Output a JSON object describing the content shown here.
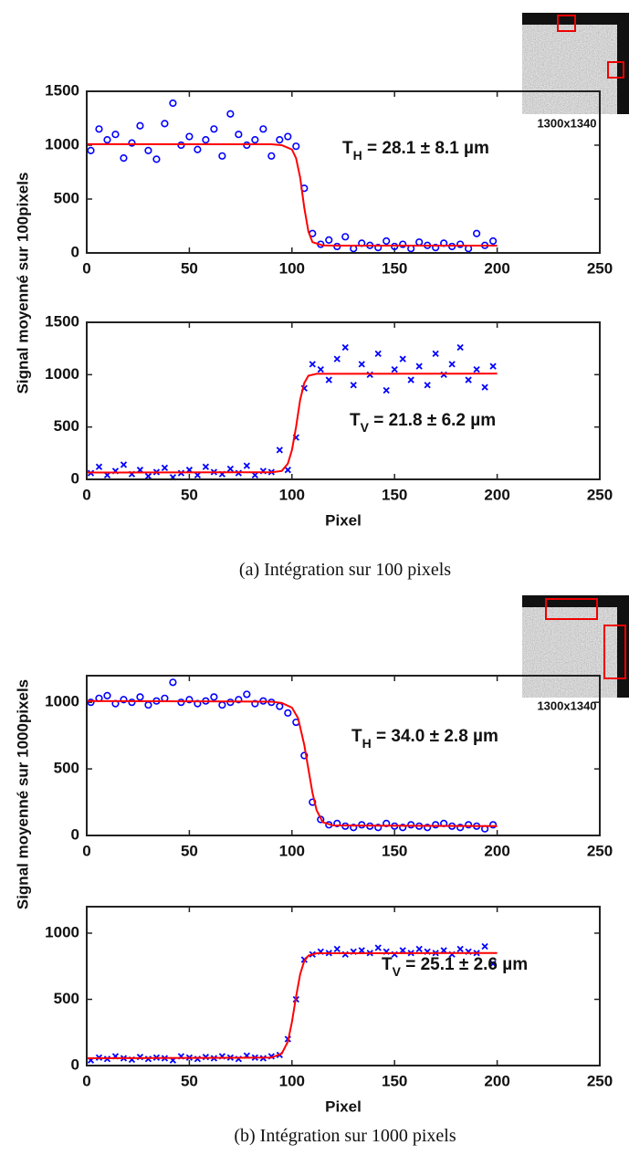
{
  "chart_data": [
    {
      "type": "scatter",
      "ylabel": "Signal moyenné sur 100pixels",
      "inset_label": "1300x1340",
      "annotation": {
        "symbol": "T",
        "subscript": "H",
        "text": " = 28.1 ± 8.1 µm"
      },
      "xlim": [
        0,
        250
      ],
      "xticks": [
        0,
        50,
        100,
        150,
        200,
        250
      ],
      "ylim": [
        0,
        1500
      ],
      "yticks": [
        0,
        500,
        1000,
        1500
      ],
      "series": [
        {
          "color": "#0000ff",
          "marker": "o",
          "x": [
            2,
            6,
            10,
            14,
            18,
            22,
            26,
            30,
            34,
            38,
            42,
            46,
            50,
            54,
            58,
            62,
            66,
            70,
            74,
            78,
            82,
            86,
            90,
            94,
            98,
            102,
            106,
            110,
            114,
            118,
            122,
            126,
            130,
            134,
            138,
            142,
            146,
            150,
            154,
            158,
            162,
            166,
            170,
            174,
            178,
            182,
            186,
            190,
            194,
            198
          ],
          "values": [
            950,
            1150,
            1050,
            1100,
            880,
            1020,
            1180,
            950,
            870,
            1200,
            1390,
            1000,
            1080,
            960,
            1050,
            1150,
            900,
            1290,
            1100,
            1000,
            1050,
            1150,
            900,
            1050,
            1080,
            990,
            600,
            180,
            80,
            120,
            60,
            150,
            40,
            90,
            70,
            50,
            110,
            60,
            80,
            40,
            100,
            70,
            50,
            90,
            60,
            80,
            40,
            180,
            70,
            110
          ]
        },
        {
          "color": "#ff0000",
          "marker": "line",
          "x": [
            0,
            90,
            95,
            100,
            102,
            104,
            106,
            108,
            110,
            115,
            120,
            200
          ],
          "values": [
            1010,
            1008,
            1000,
            960,
            880,
            700,
            420,
            200,
            100,
            70,
            68,
            68
          ]
        }
      ]
    },
    {
      "type": "scatter",
      "xlabel": "Pixel",
      "annotation": {
        "symbol": "T",
        "subscript": "V",
        "text": " = 21.8 ± 6.2 µm"
      },
      "xlim": [
        0,
        250
      ],
      "xticks": [
        0,
        50,
        100,
        150,
        200,
        250
      ],
      "ylim": [
        0,
        1500
      ],
      "yticks": [
        0,
        500,
        1000,
        1500
      ],
      "series": [
        {
          "color": "#0000ff",
          "marker": "x",
          "x": [
            2,
            6,
            10,
            14,
            18,
            22,
            26,
            30,
            34,
            38,
            42,
            46,
            50,
            54,
            58,
            62,
            66,
            70,
            74,
            78,
            82,
            86,
            90,
            94,
            98,
            102,
            106,
            110,
            114,
            118,
            122,
            126,
            130,
            134,
            138,
            142,
            146,
            150,
            154,
            158,
            162,
            166,
            170,
            174,
            178,
            182,
            186,
            190,
            194,
            198
          ],
          "values": [
            60,
            120,
            40,
            80,
            140,
            50,
            90,
            30,
            70,
            110,
            20,
            60,
            90,
            40,
            120,
            70,
            50,
            100,
            60,
            130,
            40,
            80,
            70,
            280,
            90,
            400,
            870,
            1100,
            1050,
            950,
            1150,
            1260,
            900,
            1100,
            1000,
            1200,
            850,
            1050,
            1150,
            950,
            1080,
            900,
            1200,
            1000,
            1100,
            1260,
            950,
            1050,
            880,
            1080
          ]
        },
        {
          "color": "#ff0000",
          "marker": "line",
          "x": [
            0,
            90,
            95,
            98,
            100,
            102,
            104,
            106,
            108,
            112,
            200
          ],
          "values": [
            65,
            68,
            80,
            150,
            280,
            500,
            760,
            920,
            990,
            1008,
            1010
          ]
        }
      ]
    },
    {
      "type": "scatter",
      "ylabel": "Signal moyenné sur 1000pixels",
      "inset_label": "1300x1340",
      "annotation": {
        "symbol": "T",
        "subscript": "H",
        "text": " = 34.0 ± 2.8 µm"
      },
      "xlim": [
        0,
        250
      ],
      "xticks": [
        0,
        50,
        100,
        150,
        200,
        250
      ],
      "ylim": [
        0,
        1200
      ],
      "yticks": [
        0,
        500,
        1000
      ],
      "series": [
        {
          "color": "#0000ff",
          "marker": "o",
          "x": [
            2,
            6,
            10,
            14,
            18,
            22,
            26,
            30,
            34,
            38,
            42,
            46,
            50,
            54,
            58,
            62,
            66,
            70,
            74,
            78,
            82,
            86,
            90,
            94,
            98,
            102,
            106,
            110,
            114,
            118,
            122,
            126,
            130,
            134,
            138,
            142,
            146,
            150,
            154,
            158,
            162,
            166,
            170,
            174,
            178,
            182,
            186,
            190,
            194,
            198
          ],
          "values": [
            1000,
            1030,
            1050,
            990,
            1020,
            1000,
            1040,
            980,
            1010,
            1030,
            1150,
            1000,
            1020,
            990,
            1010,
            1040,
            980,
            1000,
            1020,
            1060,
            990,
            1010,
            1000,
            970,
            920,
            850,
            600,
            250,
            120,
            80,
            90,
            70,
            60,
            80,
            70,
            60,
            90,
            70,
            60,
            80,
            70,
            60,
            80,
            90,
            70,
            60,
            80,
            70,
            50,
            80
          ]
        },
        {
          "color": "#ff0000",
          "marker": "line",
          "x": [
            0,
            90,
            95,
            100,
            103,
            106,
            108,
            110,
            112,
            115,
            120,
            200
          ],
          "values": [
            1010,
            1005,
            995,
            960,
            880,
            680,
            500,
            320,
            190,
            100,
            75,
            70
          ]
        }
      ]
    },
    {
      "type": "scatter",
      "xlabel": "Pixel",
      "annotation": {
        "symbol": "T",
        "subscript": "V",
        "text": " = 25.1 ± 2.6 µm"
      },
      "xlim": [
        0,
        250
      ],
      "xticks": [
        0,
        50,
        100,
        150,
        200,
        250
      ],
      "ylim": [
        0,
        1200
      ],
      "yticks": [
        0,
        500,
        1000
      ],
      "series": [
        {
          "color": "#0000ff",
          "marker": "x",
          "x": [
            2,
            6,
            10,
            14,
            18,
            22,
            26,
            30,
            34,
            38,
            42,
            46,
            50,
            54,
            58,
            62,
            66,
            70,
            74,
            78,
            82,
            86,
            90,
            94,
            98,
            102,
            106,
            110,
            114,
            118,
            122,
            126,
            130,
            134,
            138,
            142,
            146,
            150,
            154,
            158,
            162,
            166,
            170,
            174,
            178,
            182,
            186,
            190,
            194,
            198
          ],
          "values": [
            40,
            60,
            50,
            70,
            55,
            45,
            65,
            50,
            60,
            55,
            40,
            70,
            60,
            50,
            65,
            55,
            70,
            60,
            50,
            75,
            60,
            55,
            70,
            80,
            200,
            500,
            800,
            840,
            860,
            850,
            880,
            840,
            860,
            870,
            850,
            890,
            860,
            840,
            870,
            850,
            880,
            860,
            850,
            870,
            840,
            880,
            860,
            850,
            900,
            770
          ]
        },
        {
          "color": "#ff0000",
          "marker": "line",
          "x": [
            0,
            90,
            95,
            98,
            100,
            102,
            104,
            106,
            108,
            112,
            200
          ],
          "values": [
            55,
            60,
            90,
            180,
            330,
            520,
            690,
            790,
            830,
            848,
            850
          ]
        }
      ]
    }
  ],
  "captions": [
    "(a) Intégration sur 100 pixels",
    "(b) Intégration sur 1000 pixels"
  ]
}
